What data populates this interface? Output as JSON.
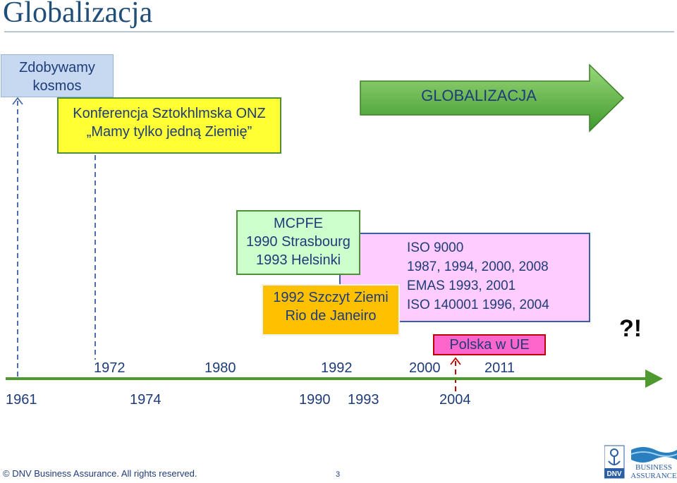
{
  "title": "Globalizacja",
  "boxes": {
    "kosmos": {
      "line1": "Zdobywamy",
      "line2": "kosmos"
    },
    "onz": {
      "line1": "Konferencja Sztokhlmska ONZ",
      "line2": "„Mamy tylko jedną Ziemię”"
    },
    "globalizacja": "GLOBALIZACJA",
    "mcpfe": {
      "line1": "MCPFE",
      "line2": "1990 Strasbourg",
      "line3": "1993 Helsinki"
    },
    "iso": {
      "line1": "ISO 9000",
      "line2": "1987, 1994, 2000, 2008",
      "line3": "EMAS 1993, 2001",
      "line4": "ISO 140001 1996, 2004"
    },
    "rio": {
      "line1": "1992 Szczyt Ziemi",
      "line2": "Rio de Janeiro"
    },
    "polska": "Polska w UE"
  },
  "timeline": {
    "upper_years": [
      "1972",
      "1980",
      "1992",
      "2000",
      "2011"
    ],
    "lower_years": [
      "1961",
      "1974",
      "1990",
      "1993",
      "2004"
    ]
  },
  "question": "?!",
  "footer": {
    "copyright": "© DNV Business Assurance. All rights reserved.",
    "page_number": "3",
    "logo_text": "DNV",
    "brand_line1": "BUSINESS",
    "brand_line2": "ASSURANCE"
  },
  "colors": {
    "timeline_green": "#4f9a2f",
    "arrow_green": "#66bb44",
    "kosmos_fill": "#c6d9f1",
    "onz_fill": "#ffff33",
    "mcpfe_fill": "#ccffcc",
    "iso_fill": "#ffccff",
    "rio_fill": "#ffc000",
    "polska_fill": "#ff66cc"
  }
}
